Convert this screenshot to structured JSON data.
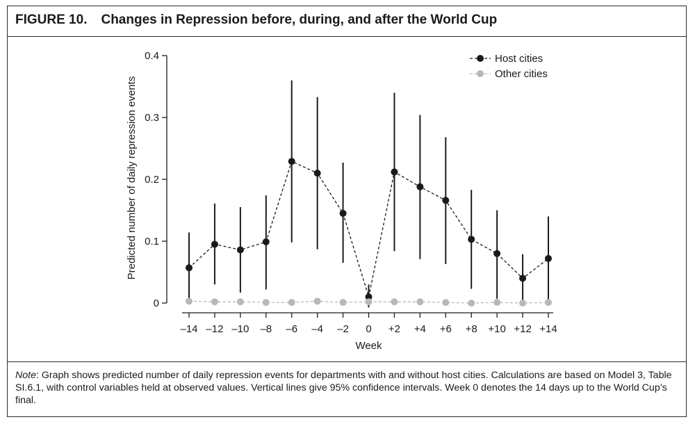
{
  "figure": {
    "label": "FIGURE 10.",
    "title": "Changes in Repression before, during, and after the World Cup"
  },
  "note": {
    "lead": "Note",
    "text": ": Graph shows predicted number of daily repression events for departments with and without host cities. Calculations are based on Model 3, Table SI.6.1, with control variables held at observed values. Vertical lines give 95% confidence intervals. Week 0 denotes the 14 days up to the World Cup’s final."
  },
  "chart_data": {
    "type": "line",
    "title": "Changes in Repression before, during, and after the World Cup",
    "xlabel": "Week",
    "ylabel": "Predicted number of daily repression events",
    "ylim": [
      0,
      0.4
    ],
    "y_ticks": [
      0,
      0.1,
      0.2,
      0.3,
      0.4
    ],
    "y_tick_labels": [
      "0",
      "0.1",
      "0.2",
      "0.3",
      "0.4"
    ],
    "x": [
      -14,
      -12,
      -10,
      -8,
      -6,
      -4,
      -2,
      0,
      2,
      4,
      6,
      8,
      10,
      12,
      14
    ],
    "x_tick_labels": [
      "–14",
      "–12",
      "–10",
      "–8",
      "–6",
      "–4",
      "–2",
      "0",
      "+2",
      "+4",
      "+6",
      "+8",
      "+10",
      "+12",
      "+14"
    ],
    "legend_position": "top-right",
    "grid": false,
    "series": [
      {
        "name": "Host cities",
        "color": "#1a1a1a",
        "values": [
          0.057,
          0.095,
          0.086,
          0.099,
          0.229,
          0.21,
          0.145,
          0.01,
          0.212,
          0.188,
          0.166,
          0.103,
          0.08,
          0.04,
          0.072
        ],
        "ci_lower": [
          0.0,
          0.03,
          0.017,
          0.022,
          0.098,
          0.087,
          0.065,
          -0.007,
          0.084,
          0.071,
          0.063,
          0.023,
          0.007,
          0.0,
          0.003
        ],
        "ci_upper": [
          0.114,
          0.161,
          0.155,
          0.174,
          0.36,
          0.333,
          0.227,
          0.03,
          0.34,
          0.304,
          0.268,
          0.183,
          0.15,
          0.079,
          0.14
        ]
      },
      {
        "name": "Other cities",
        "color": "#b8b8b8",
        "values": [
          0.003,
          0.002,
          0.002,
          0.001,
          0.001,
          0.003,
          0.001,
          0.002,
          0.002,
          0.002,
          0.001,
          0.0,
          0.001,
          0.0,
          0.001
        ]
      }
    ]
  }
}
